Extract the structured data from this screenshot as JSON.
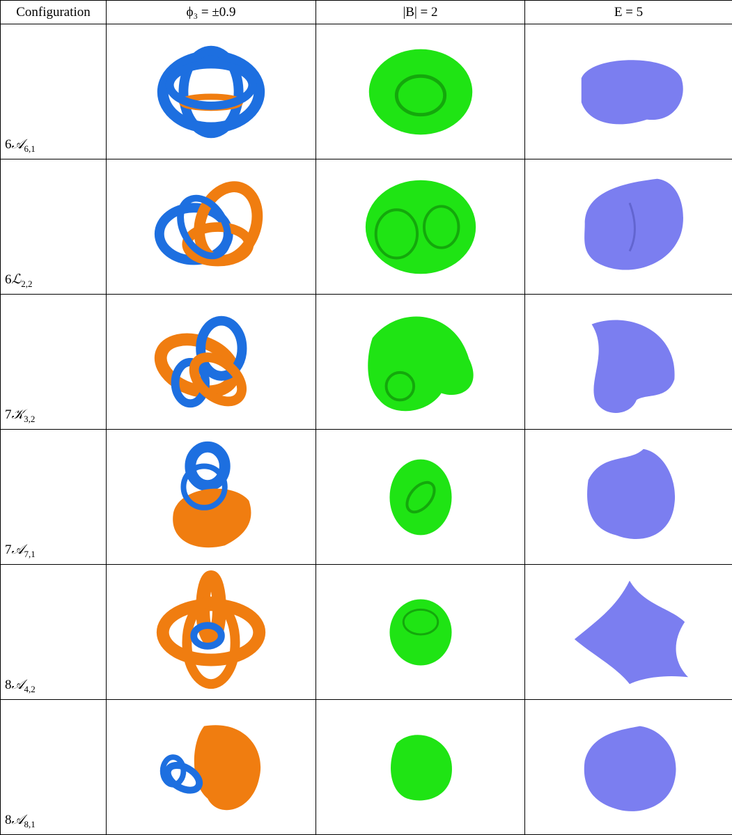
{
  "header": [
    "Configuration",
    "ϕ₃ = ±0.9",
    "|B| = 2",
    "E = 5"
  ],
  "rows": [
    {
      "number": "6",
      "symbol": "𝒜",
      "subscript": "6,1"
    },
    {
      "number": "6",
      "symbol": "ℒ",
      "subscript": "2,2"
    },
    {
      "number": "7",
      "symbol": "𝒦",
      "subscript": "3,2"
    },
    {
      "number": "7",
      "symbol": "𝒜",
      "subscript": "7,1"
    },
    {
      "number": "8",
      "symbol": "𝒜",
      "subscript": "4,2"
    },
    {
      "number": "8",
      "symbol": "𝒜",
      "subscript": "8,1"
    }
  ]
}
